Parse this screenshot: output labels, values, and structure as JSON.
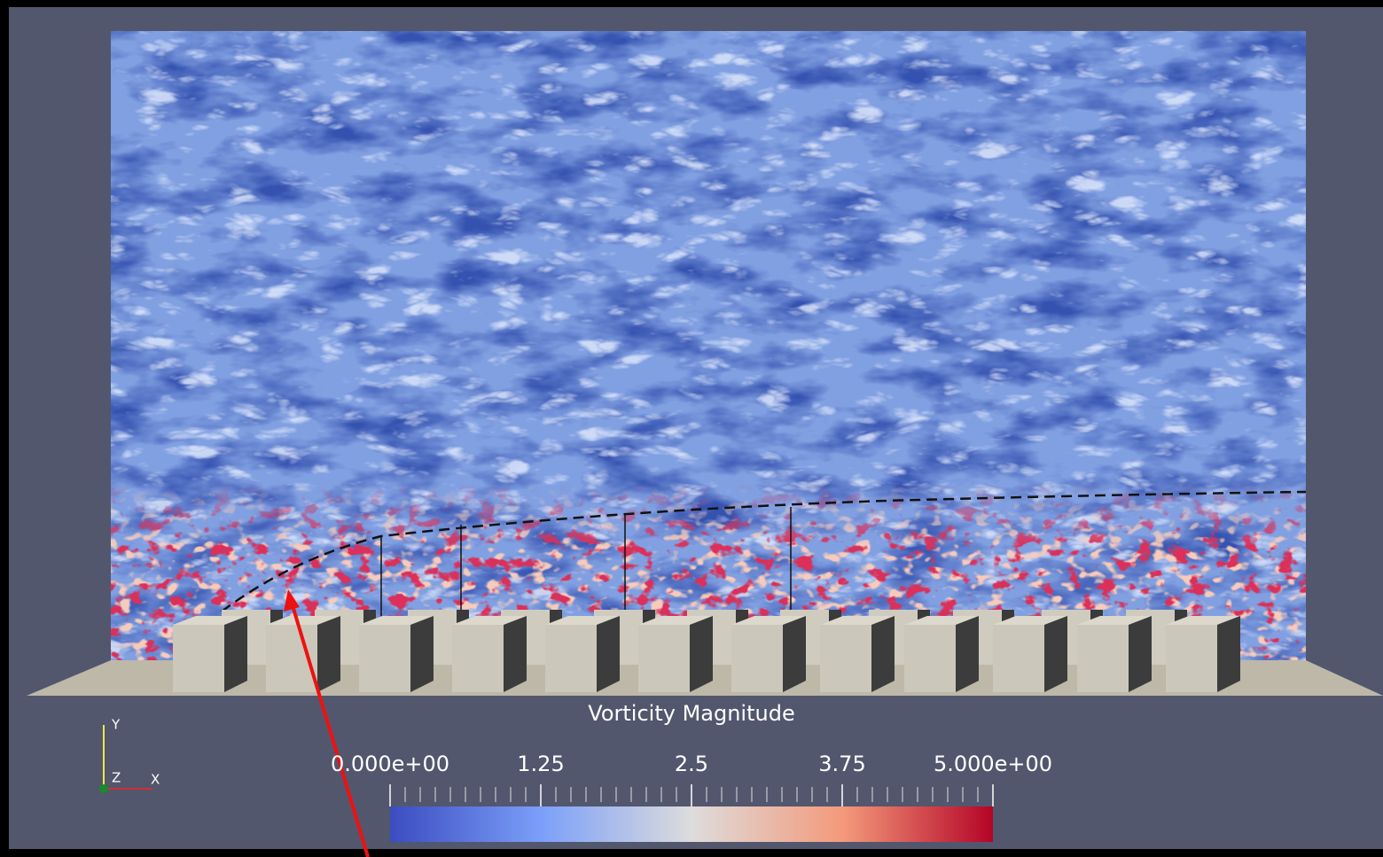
{
  "colorbar": {
    "title": "Vorticity Magnitude",
    "ticks": [
      {
        "value": 0,
        "label": "0.000e+00"
      },
      1.25,
      2.5,
      3.75,
      {
        "value": 5,
        "label": "5.000e+00"
      }
    ]
  },
  "orientation_axes": {
    "y": "Y",
    "z": "Z",
    "x": "X"
  }
}
